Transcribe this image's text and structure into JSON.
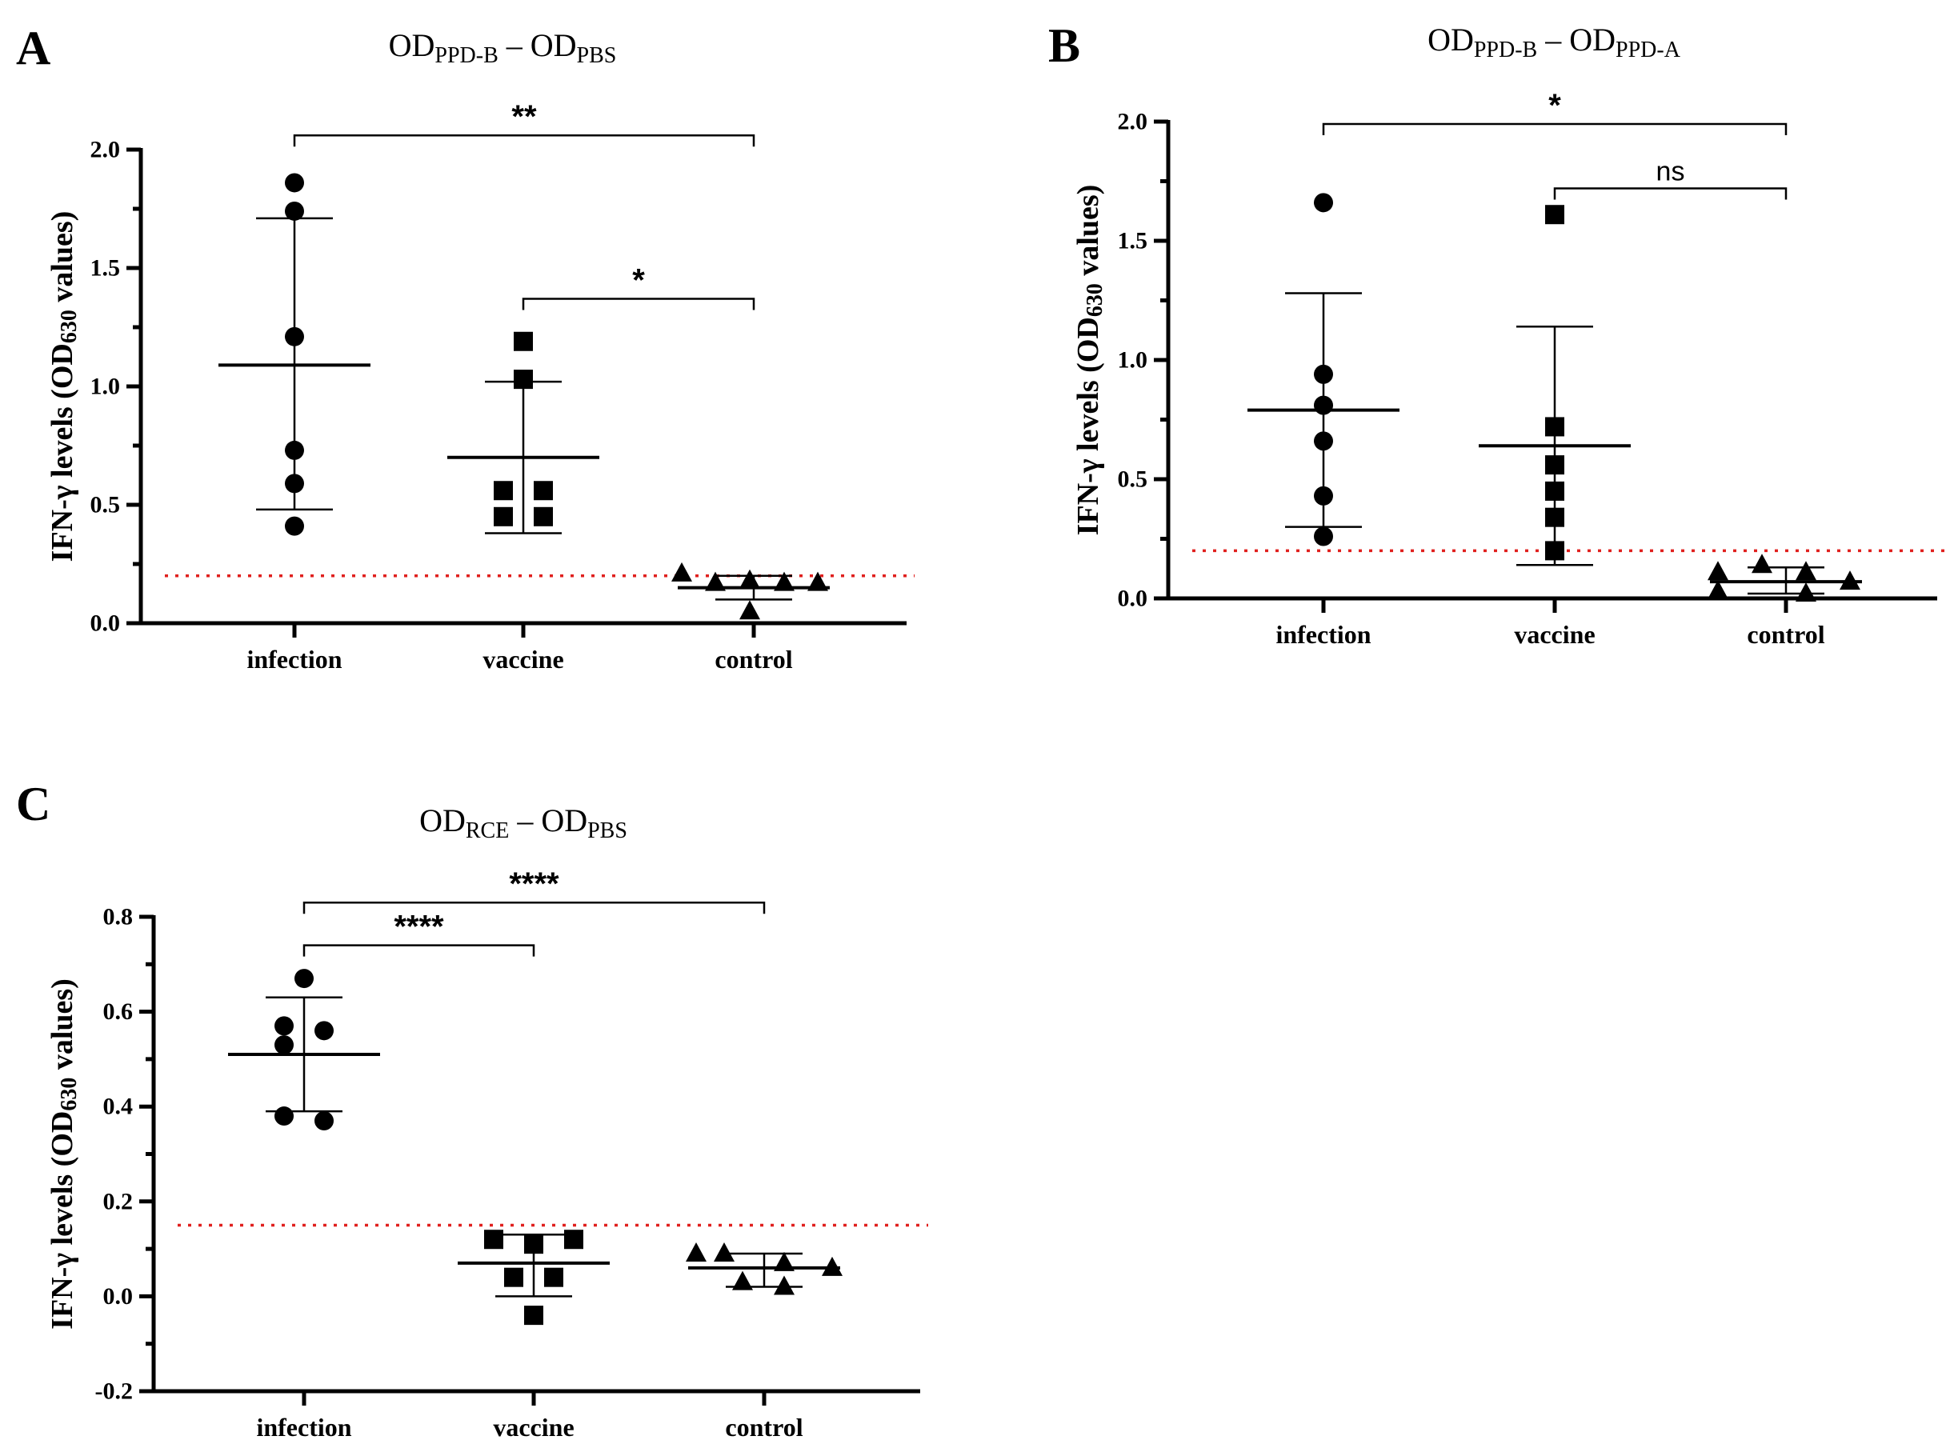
{
  "chart_data": [
    {
      "type": "scatter",
      "panel": "A",
      "title_parts": [
        "OD",
        "PPD-B",
        " – OD",
        "PBS"
      ],
      "ylabel_parts": [
        "IFN-γ levels (OD",
        "630",
        " values)"
      ],
      "categories": [
        "infection",
        "vaccine",
        "control"
      ],
      "ylim": [
        0,
        2.0
      ],
      "yticks": [
        "0.0",
        "0.5",
        "1.0",
        "1.5",
        "2.0"
      ],
      "ytick_values": [
        0,
        0.5,
        1.0,
        1.5,
        2.0
      ],
      "threshold": 0.2,
      "series": [
        {
          "group": "infection",
          "marker": "circle",
          "values": [
            1.86,
            1.74,
            1.21,
            0.73,
            0.59,
            0.41
          ],
          "mean": 1.09,
          "sd_low": 0.48,
          "sd_high": 1.71
        },
        {
          "group": "vaccine",
          "marker": "square",
          "values": [
            1.19,
            1.03,
            0.56,
            0.56,
            0.45,
            0.45
          ],
          "mean": 0.7,
          "sd_low": 0.38,
          "sd_high": 1.02
        },
        {
          "group": "control",
          "marker": "triangle",
          "values": [
            0.21,
            0.17,
            0.18,
            0.17,
            0.17,
            0.05
          ],
          "mean": 0.15,
          "sd_low": 0.1,
          "sd_high": 0.2
        }
      ],
      "comparisons": [
        {
          "from": "infection",
          "to": "control",
          "y": 2.06,
          "label": "**"
        },
        {
          "from": "vaccine",
          "to": "control",
          "y": 1.37,
          "label": "*"
        }
      ]
    },
    {
      "type": "scatter",
      "panel": "B",
      "title_parts": [
        "OD",
        "PPD-B",
        " – OD",
        "PPD-A"
      ],
      "ylabel_parts": [
        "IFN-γ levels (OD",
        "630",
        " values)"
      ],
      "categories": [
        "infection",
        "vaccine",
        "control"
      ],
      "ylim": [
        0,
        2.0
      ],
      "yticks": [
        "0.0",
        "0.5",
        "1.0",
        "1.5",
        "2.0"
      ],
      "ytick_values": [
        0,
        0.5,
        1.0,
        1.5,
        2.0
      ],
      "threshold": 0.2,
      "series": [
        {
          "group": "infection",
          "marker": "circle",
          "values": [
            1.66,
            0.94,
            0.81,
            0.66,
            0.43,
            0.26
          ],
          "mean": 0.79,
          "sd_low": 0.3,
          "sd_high": 1.28
        },
        {
          "group": "vaccine",
          "marker": "square",
          "values": [
            1.61,
            0.72,
            0.56,
            0.45,
            0.34,
            0.2
          ],
          "mean": 0.64,
          "sd_low": 0.14,
          "sd_high": 1.14
        },
        {
          "group": "control",
          "marker": "triangle",
          "values": [
            0.11,
            0.14,
            0.11,
            0.07,
            0.03,
            0.02
          ],
          "mean": 0.07,
          "sd_low": 0.02,
          "sd_high": 0.13
        }
      ],
      "comparisons": [
        {
          "from": "infection",
          "to": "control",
          "y": 1.99,
          "label": "*"
        },
        {
          "from": "vaccine",
          "to": "control",
          "y": 1.72,
          "label": "ns"
        }
      ]
    },
    {
      "type": "scatter",
      "panel": "C",
      "title_parts": [
        "OD",
        "RCE",
        " – OD",
        "PBS"
      ],
      "ylabel_parts": [
        "IFN-γ levels (OD",
        "630",
        " values)"
      ],
      "categories": [
        "infection",
        "vaccine",
        "control"
      ],
      "ylim": [
        -0.2,
        0.8
      ],
      "yticks": [
        "-0.2",
        "0.0",
        "0.2",
        "0.4",
        "0.6",
        "0.8"
      ],
      "ytick_values": [
        -0.2,
        0.0,
        0.2,
        0.4,
        0.6,
        0.8
      ],
      "threshold": 0.15,
      "series": [
        {
          "group": "infection",
          "marker": "circle",
          "values": [
            0.67,
            0.57,
            0.56,
            0.53,
            0.38,
            0.37
          ],
          "mean": 0.51,
          "sd_low": 0.39,
          "sd_high": 0.63
        },
        {
          "group": "vaccine",
          "marker": "square",
          "values": [
            0.12,
            0.12,
            0.11,
            0.04,
            0.04,
            -0.04
          ],
          "mean": 0.07,
          "sd_low": 0.0,
          "sd_high": 0.13
        },
        {
          "group": "control",
          "marker": "triangle",
          "values": [
            0.09,
            0.09,
            0.07,
            0.06,
            0.03,
            0.02
          ],
          "mean": 0.06,
          "sd_low": 0.02,
          "sd_high": 0.09
        }
      ],
      "comparisons": [
        {
          "from": "infection",
          "to": "control",
          "y": 0.83,
          "label": "****"
        },
        {
          "from": "infection",
          "to": "vaccine",
          "y": 0.74,
          "label": "****"
        }
      ]
    }
  ]
}
